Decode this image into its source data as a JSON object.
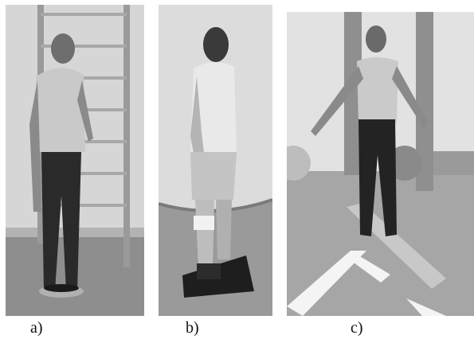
{
  "figure": {
    "panels": [
      {
        "id": "a",
        "caption": "a)"
      },
      {
        "id": "b",
        "caption": "b)"
      },
      {
        "id": "c",
        "caption": "c)"
      }
    ]
  }
}
